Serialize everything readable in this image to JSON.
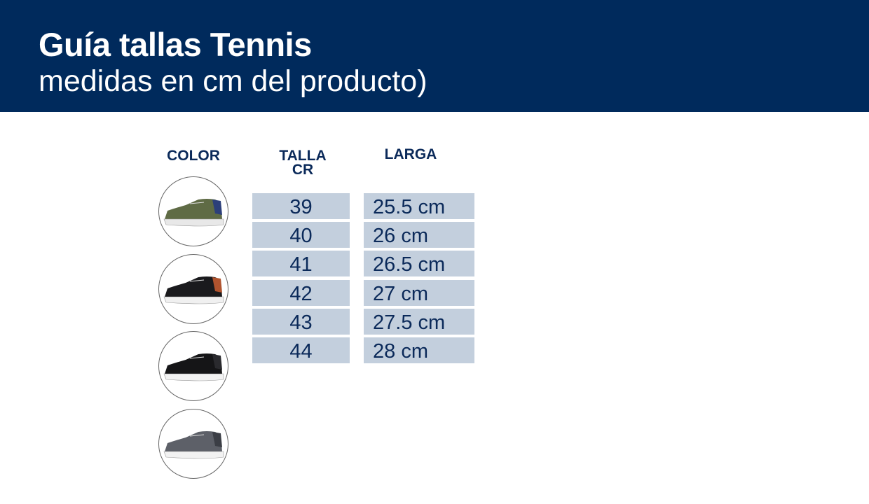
{
  "header": {
    "title": "Guía tallas Tennis",
    "subtitle": "medidas en cm del producto)"
  },
  "columns": {
    "color": "COLOR",
    "talla": "TALLA CR",
    "larga": "LARGA"
  },
  "rows": [
    {
      "talla": "39",
      "larga": "25.5 cm"
    },
    {
      "talla": "40",
      "larga": "26 cm"
    },
    {
      "talla": "41",
      "larga": "26.5 cm"
    },
    {
      "talla": "42",
      "larga": "27 cm"
    },
    {
      "talla": "43",
      "larga": "27.5 cm"
    },
    {
      "talla": "44",
      "larga": "28 cm"
    }
  ],
  "colors": [
    {
      "name": "olive-shoe",
      "upper": "#5f6b45",
      "accent": "#2c3f7a",
      "sole": "#e8e8e8"
    },
    {
      "name": "black-shoe",
      "upper": "#1a1a1d",
      "accent": "#b0532e",
      "sole": "#f0f0f0"
    },
    {
      "name": "black-shoe-2",
      "upper": "#151517",
      "accent": "#2a2a2e",
      "sole": "#f2f2f2"
    },
    {
      "name": "gray-shoe",
      "upper": "#5d6068",
      "accent": "#3b3e45",
      "sole": "#f2f2f2"
    }
  ]
}
